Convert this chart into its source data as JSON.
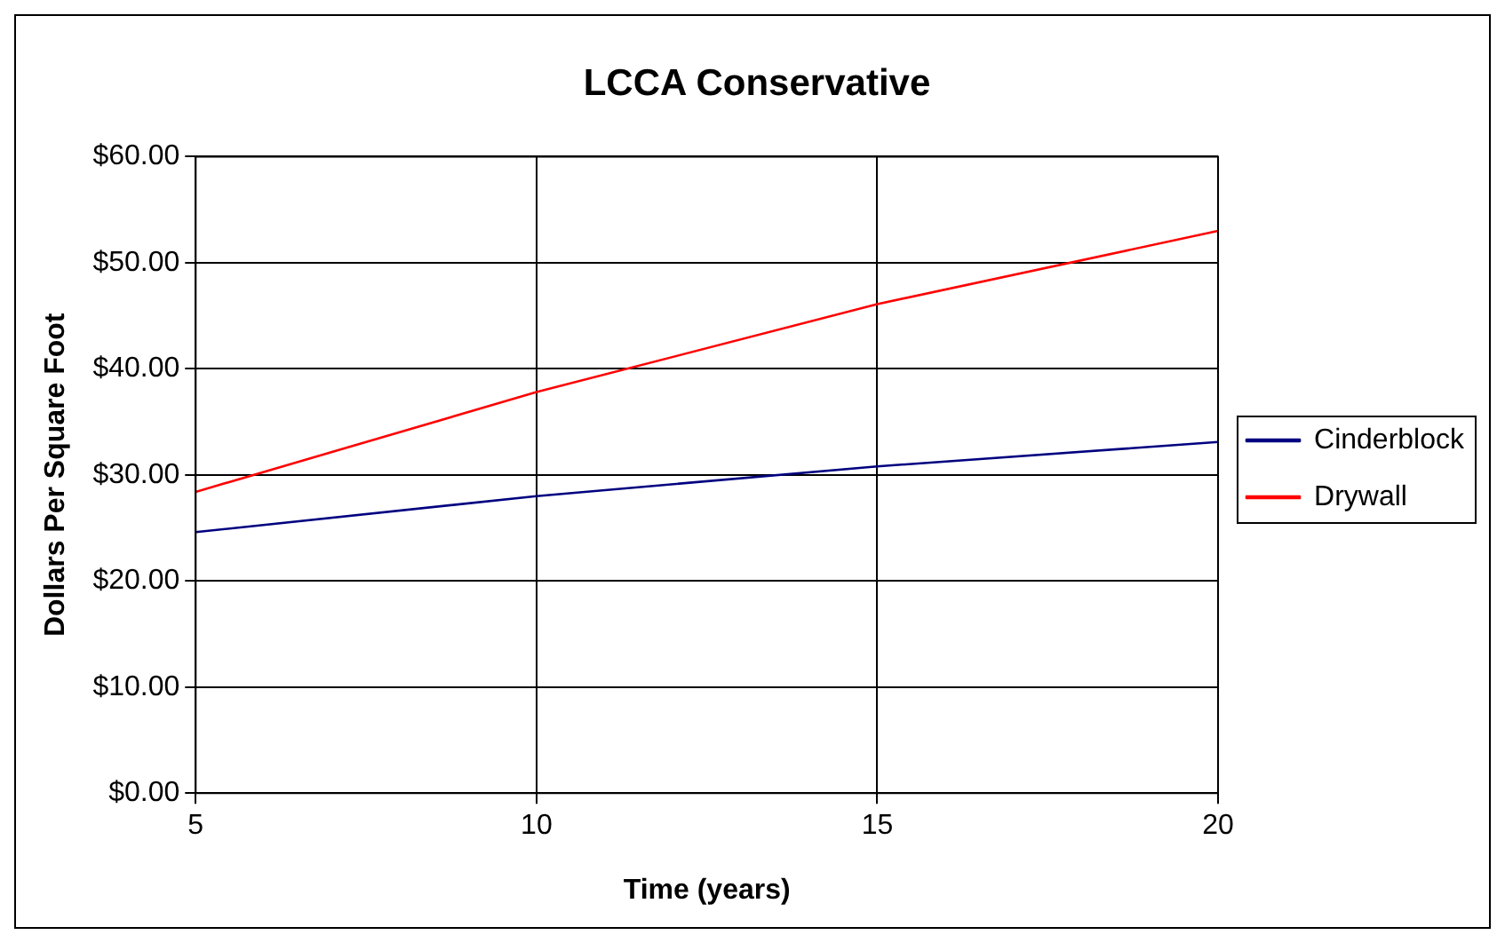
{
  "chart_data": {
    "type": "line",
    "title": "LCCA Conservative",
    "xlabel": "Time (years)",
    "ylabel": "Dollars Per Square Foot",
    "x": [
      5,
      10,
      15,
      20
    ],
    "series": [
      {
        "name": "Cinderblock",
        "color": "#000080",
        "values": [
          24.6,
          28.0,
          30.8,
          33.1
        ]
      },
      {
        "name": "Drywall",
        "color": "#ff0000",
        "values": [
          28.4,
          37.8,
          46.1,
          53.0
        ]
      }
    ],
    "xlim": [
      5,
      20
    ],
    "xticks": [
      5,
      10,
      15,
      20
    ],
    "ylim": [
      0,
      60
    ],
    "yticks": [
      {
        "value": 0,
        "label": "$0.00"
      },
      {
        "value": 10,
        "label": "$10.00"
      },
      {
        "value": 20,
        "label": "$20.00"
      },
      {
        "value": 30,
        "label": "$30.00"
      },
      {
        "value": 40,
        "label": "$40.00"
      },
      {
        "value": 50,
        "label": "$50.00"
      },
      {
        "value": 60,
        "label": "$60.00"
      }
    ],
    "grid": true,
    "legend": "right",
    "marker": "none",
    "line_style": "solid"
  }
}
